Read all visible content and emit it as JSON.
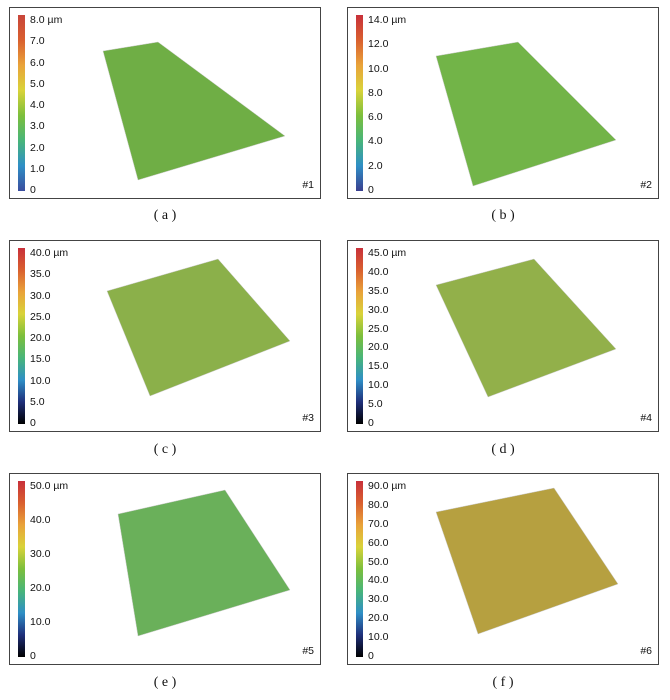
{
  "panels": [
    {
      "id": "a",
      "caption": "( a )",
      "number": "#1",
      "unit": "µm",
      "ticks": [
        "0",
        "1.0",
        "2.0",
        "3.0",
        "4.0",
        "5.0",
        "6.0",
        "7.0",
        "8.0 µm"
      ],
      "colors": [
        "#3a4d9e",
        "#2f8fc6",
        "#48b57a",
        "#7cbf3c",
        "#d9d33a",
        "#e9a33a",
        "#d9602f",
        "#c8453a"
      ]
    },
    {
      "id": "b",
      "caption": "( b )",
      "number": "#2",
      "unit": "µm",
      "ticks": [
        "0",
        "2.0",
        "4.0",
        "6.0",
        "8.0",
        "10.0",
        "12.0",
        "14.0 µm"
      ],
      "colors": [
        "#3a3f8f",
        "#2f8fc6",
        "#48b57a",
        "#7cbf3c",
        "#d9d33a",
        "#e9a33a",
        "#d9602f",
        "#c8303a"
      ]
    },
    {
      "id": "c",
      "caption": "( c )",
      "number": "#3",
      "unit": "µm",
      "ticks": [
        "0",
        "5.0",
        "10.0",
        "15.0",
        "20.0",
        "25.0",
        "30.0",
        "35.0",
        "40.0 µm"
      ],
      "colors": [
        "#000000",
        "#1f2f7a",
        "#2f8fc6",
        "#48b57a",
        "#7cbf3c",
        "#d9d33a",
        "#e9a33a",
        "#d9602f",
        "#c8303a"
      ]
    },
    {
      "id": "d",
      "caption": "( d )",
      "number": "#4",
      "unit": "µm",
      "ticks": [
        "0",
        "5.0",
        "10.0",
        "15.0",
        "20.0",
        "25.0",
        "30.0",
        "35.0",
        "40.0",
        "45.0 µm"
      ],
      "colors": [
        "#000000",
        "#1f2f7a",
        "#2f8fc6",
        "#48b57a",
        "#7cbf3c",
        "#d9d33a",
        "#e9a33a",
        "#d9602f",
        "#c8303a"
      ]
    },
    {
      "id": "e",
      "caption": "( e )",
      "number": "#5",
      "unit": "µm",
      "ticks": [
        "0",
        "10.0",
        "20.0",
        "30.0",
        "40.0",
        "50.0 µm"
      ],
      "colors": [
        "#000000",
        "#1f2f7a",
        "#2f8fc6",
        "#48b57a",
        "#7cbf3c",
        "#d9d33a",
        "#e9a33a",
        "#d9602f",
        "#c8303a"
      ]
    },
    {
      "id": "f",
      "caption": "( f )",
      "number": "#6",
      "unit": "µm",
      "ticks": [
        "0",
        "10.0",
        "20.0",
        "30.0",
        "40.0",
        "50.0",
        "60.0",
        "70.0",
        "80.0",
        "90.0 µm"
      ],
      "colors": [
        "#000000",
        "#1f2f7a",
        "#2f8fc6",
        "#48b57a",
        "#7cbf3c",
        "#d9d33a",
        "#e9a33a",
        "#d9602f",
        "#c8303a"
      ]
    }
  ]
}
